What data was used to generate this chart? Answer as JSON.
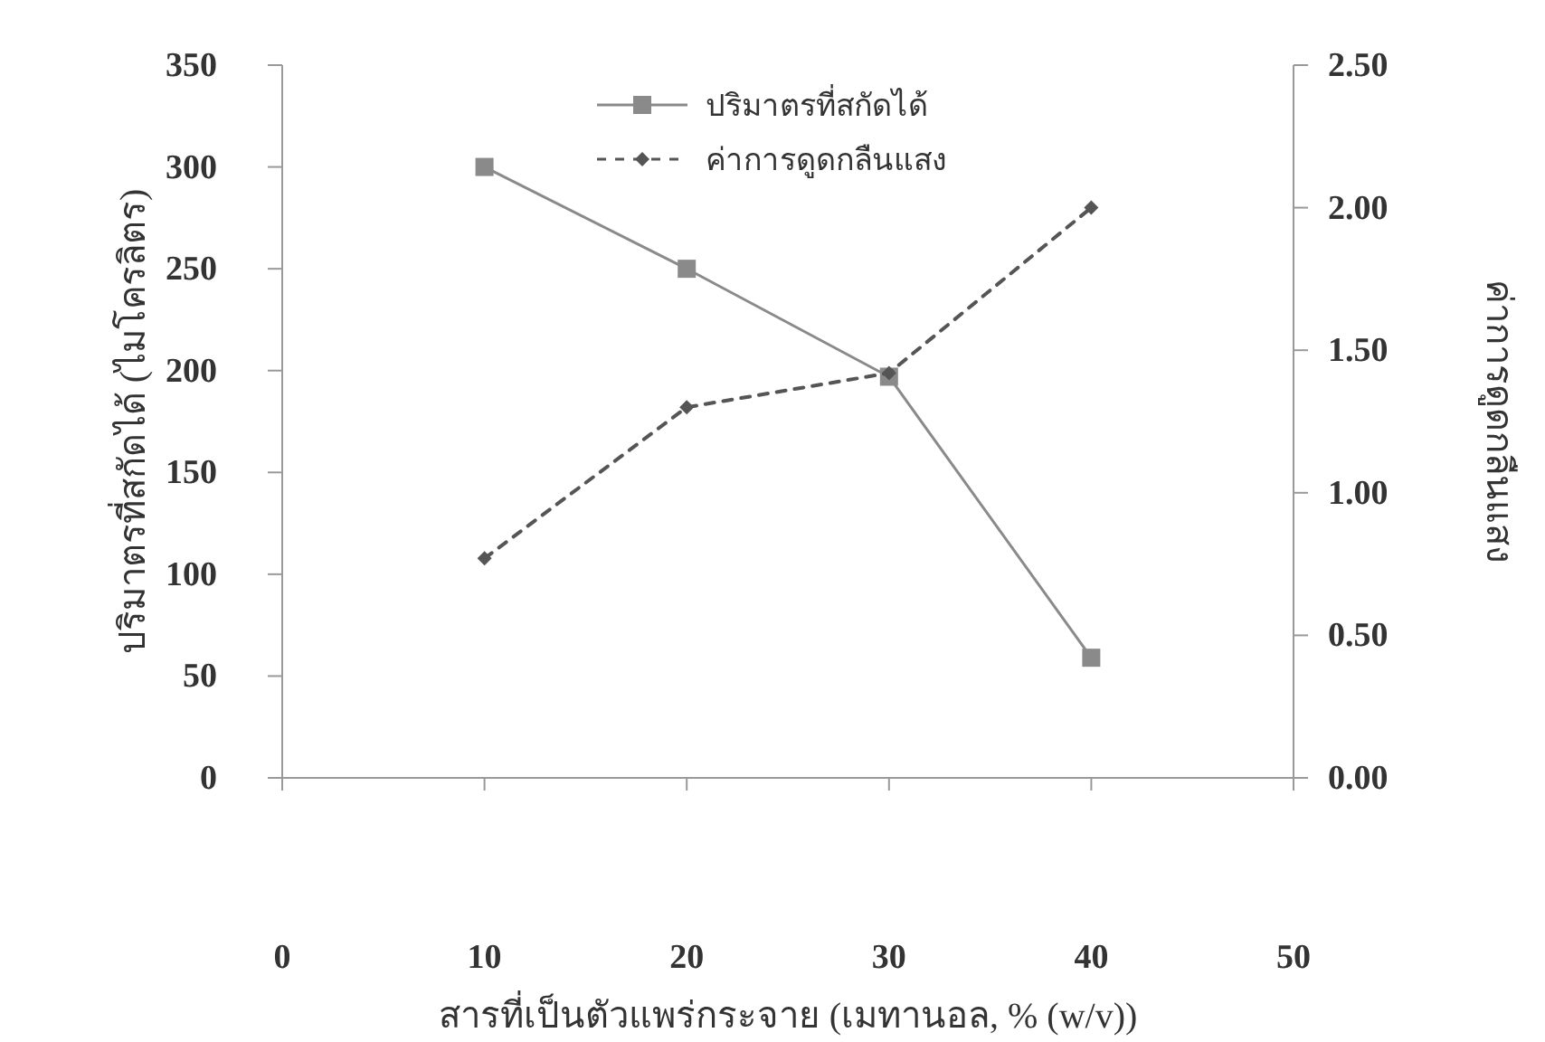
{
  "chart_data": {
    "type": "line",
    "xlabel": "สารที่เป็นตัวแพร่กระจาย (เมทานอล, % (w/v))",
    "ylabel": "ปริมาตรที่สกัดได้ (ไมโครลิตร)",
    "y2label": "ค่าการดูดกลืนแสง",
    "x": [
      10,
      20,
      30,
      40
    ],
    "xlim": [
      0,
      50
    ],
    "xticks": [
      0,
      10,
      20,
      30,
      40,
      50
    ],
    "ylim": [
      0,
      350
    ],
    "yticks": [
      0,
      50,
      100,
      150,
      200,
      250,
      300,
      350
    ],
    "y2lim": [
      0,
      2.5
    ],
    "y2ticks": [
      {
        "value": 0,
        "label": "0.00"
      },
      {
        "value": 0.5,
        "label": "0.50"
      },
      {
        "value": 1,
        "label": "1.00"
      },
      {
        "value": 1.5,
        "label": "1.50"
      },
      {
        "value": 2,
        "label": "2.00"
      },
      {
        "value": 2.5,
        "label": "2.50"
      }
    ],
    "series": [
      {
        "name": "ปริมาตรที่สกัดได้",
        "color": "#8a8a8a",
        "values": [
          300,
          250,
          197,
          59
        ],
        "marker": "square",
        "line_style": "solid"
      },
      {
        "name": "ค่าการดูดกลืนแสง",
        "color": "#555555",
        "values": [
          0.77,
          1.3,
          1.42,
          2.0
        ],
        "axis": "y2",
        "marker": "diamond",
        "line_style": "dashed"
      }
    ],
    "legend": "top",
    "grid": false
  }
}
